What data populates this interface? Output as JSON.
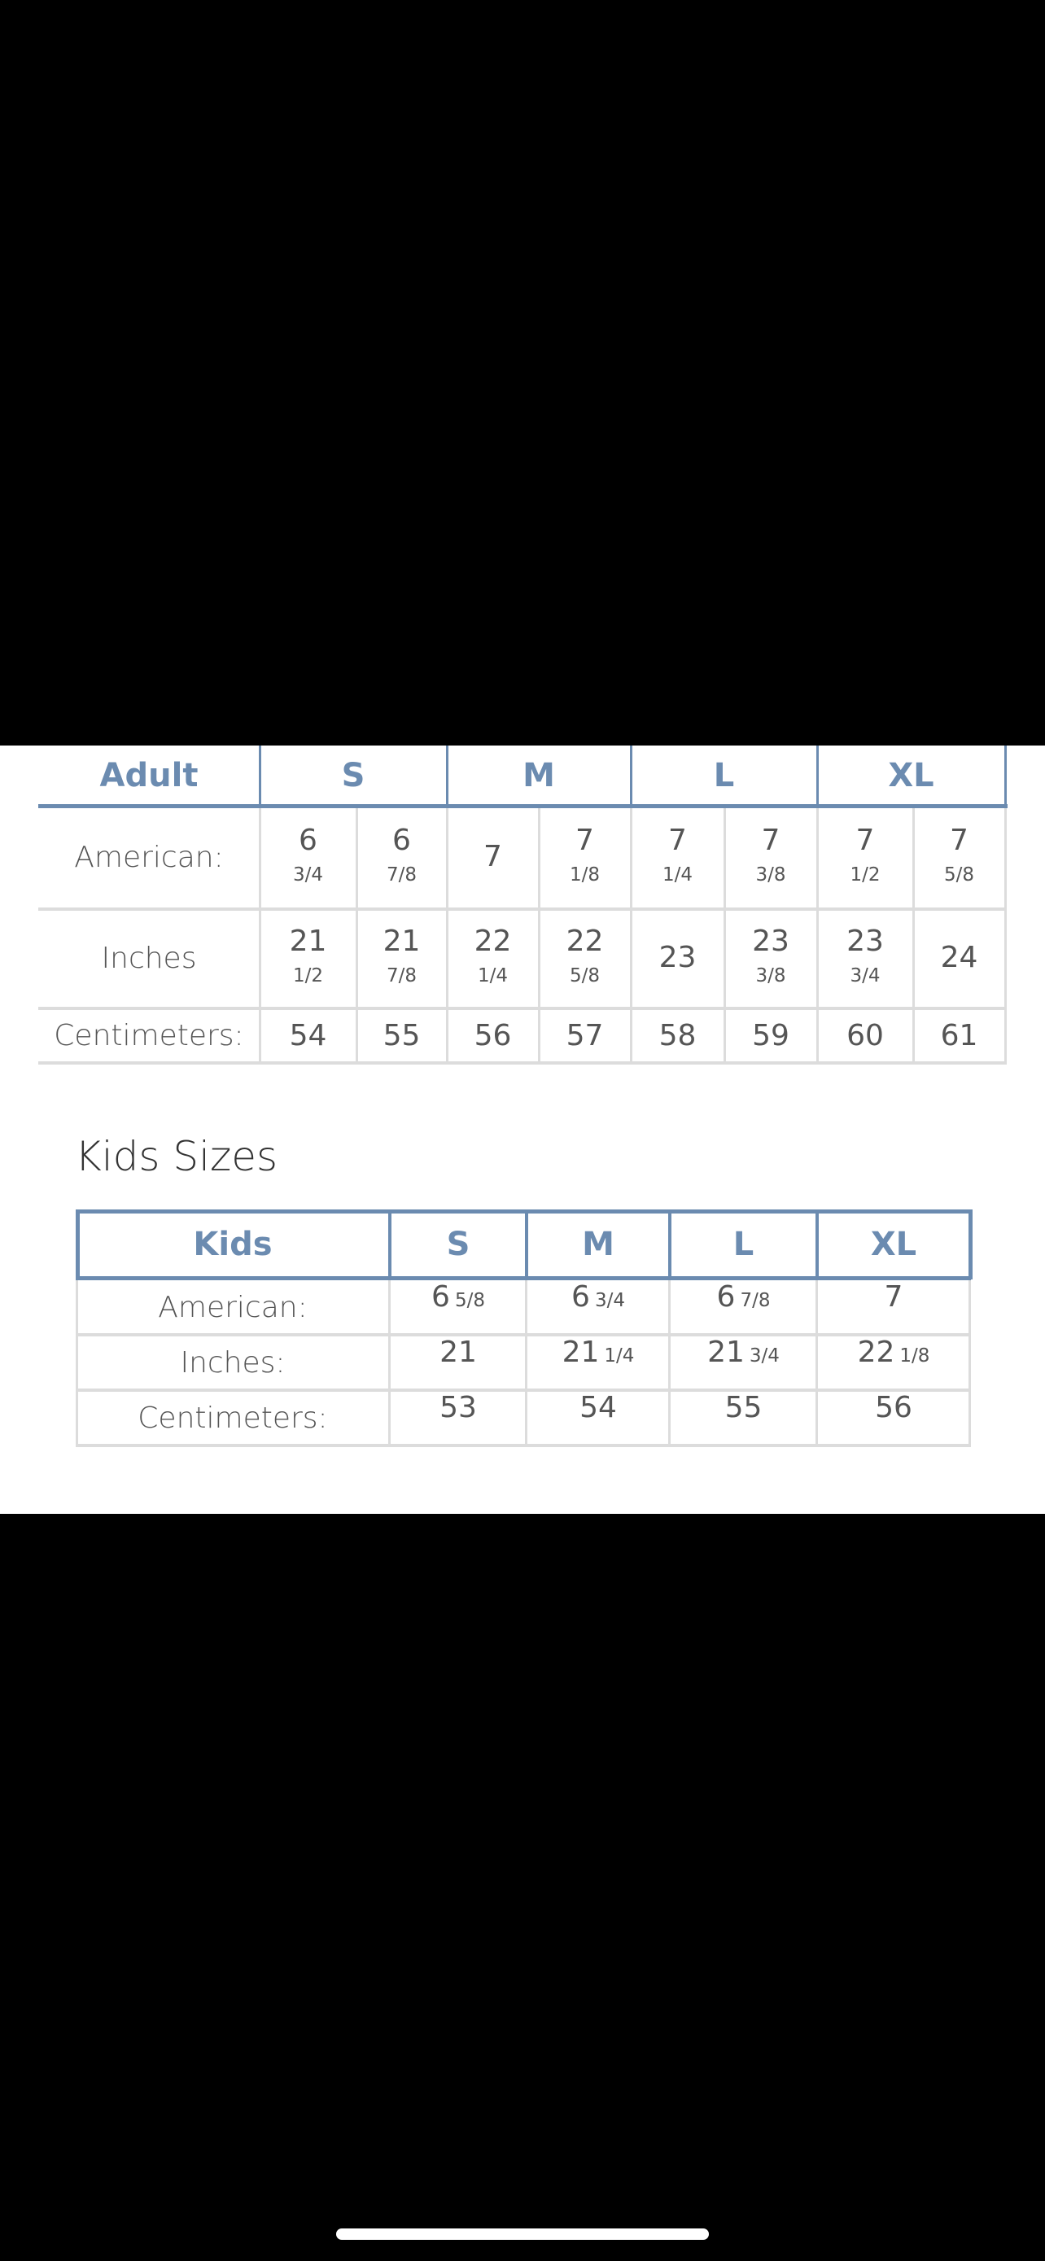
{
  "colors": {
    "accent": "#6b8bb0",
    "grid": "#dcdcdc",
    "text": "#555555"
  },
  "adult": {
    "header": [
      "Adult",
      "S",
      "M",
      "L",
      "XL"
    ],
    "rows": [
      {
        "label": "American:",
        "values": [
          {
            "whole": "6",
            "frac": "3/4"
          },
          {
            "whole": "6",
            "frac": "7/8"
          },
          {
            "whole": "7",
            "frac": ""
          },
          {
            "whole": "7",
            "frac": "1/8"
          },
          {
            "whole": "7",
            "frac": "1/4"
          },
          {
            "whole": "7",
            "frac": "3/8"
          },
          {
            "whole": "7",
            "frac": "1/2"
          },
          {
            "whole": "7",
            "frac": "5/8"
          }
        ]
      },
      {
        "label": "Inches",
        "values": [
          {
            "whole": "21",
            "frac": "1/2"
          },
          {
            "whole": "21",
            "frac": "7/8"
          },
          {
            "whole": "22",
            "frac": "1/4"
          },
          {
            "whole": "22",
            "frac": "5/8"
          },
          {
            "whole": "23",
            "frac": ""
          },
          {
            "whole": "23",
            "frac": "3/8"
          },
          {
            "whole": "23",
            "frac": "3/4"
          },
          {
            "whole": "24",
            "frac": ""
          }
        ]
      },
      {
        "label": "Centimeters:",
        "values": [
          {
            "whole": "54",
            "frac": ""
          },
          {
            "whole": "55",
            "frac": ""
          },
          {
            "whole": "56",
            "frac": ""
          },
          {
            "whole": "57",
            "frac": ""
          },
          {
            "whole": "58",
            "frac": ""
          },
          {
            "whole": "59",
            "frac": ""
          },
          {
            "whole": "60",
            "frac": ""
          },
          {
            "whole": "61",
            "frac": ""
          }
        ]
      }
    ]
  },
  "kids": {
    "title": "Kids Sizes",
    "header": [
      "Kids",
      "S",
      "M",
      "L",
      "XL"
    ],
    "rows": [
      {
        "label": "American:",
        "values": [
          {
            "whole": "6",
            "frac": "5/8"
          },
          {
            "whole": "6",
            "frac": "3/4"
          },
          {
            "whole": "6",
            "frac": "7/8"
          },
          {
            "whole": "7",
            "frac": ""
          }
        ]
      },
      {
        "label": "Inches:",
        "values": [
          {
            "whole": "21",
            "frac": ""
          },
          {
            "whole": "21",
            "frac": "1/4"
          },
          {
            "whole": "21",
            "frac": "3/4"
          },
          {
            "whole": "22",
            "frac": "1/8"
          }
        ]
      },
      {
        "label": "Centimeters:",
        "values": [
          {
            "whole": "53",
            "frac": ""
          },
          {
            "whole": "54",
            "frac": ""
          },
          {
            "whole": "55",
            "frac": ""
          },
          {
            "whole": "56",
            "frac": ""
          }
        ]
      }
    ]
  }
}
